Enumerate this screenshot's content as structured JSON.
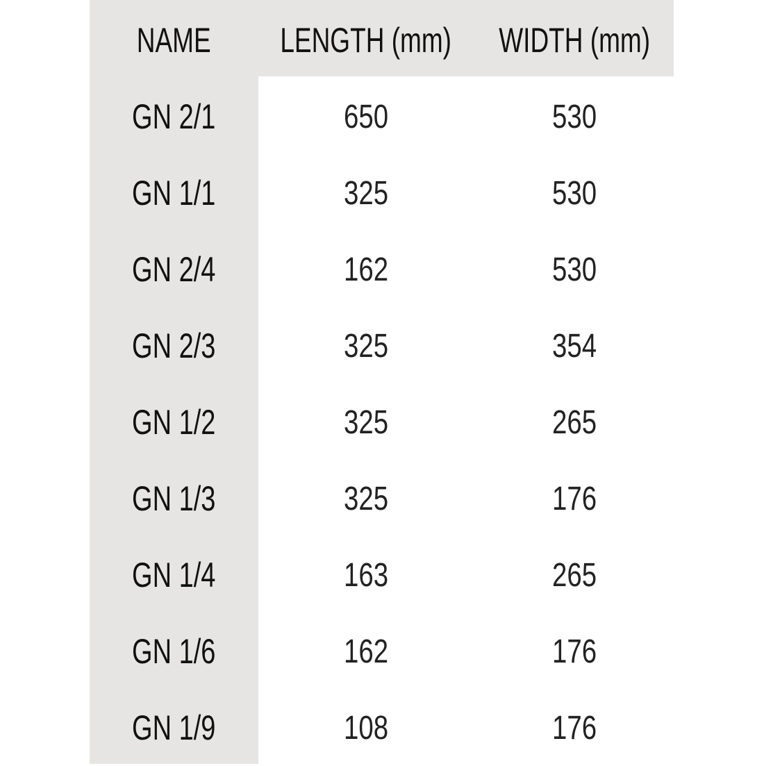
{
  "table": {
    "headers": [
      "NAME",
      "LENGTH (mm)",
      "WIDTH (mm)"
    ],
    "rows": [
      {
        "name": "GN 2/1",
        "length": "650",
        "width": "530"
      },
      {
        "name": "GN 1/1",
        "length": "325",
        "width": "530"
      },
      {
        "name": "GN 2/4",
        "length": "162",
        "width": "530"
      },
      {
        "name": "GN 2/3",
        "length": "325",
        "width": "354"
      },
      {
        "name": "GN 1/2",
        "length": "325",
        "width": "265"
      },
      {
        "name": "GN 1/3",
        "length": "325",
        "width": "176"
      },
      {
        "name": "GN 1/4",
        "length": "163",
        "width": "265"
      },
      {
        "name": "GN 1/6",
        "length": "162",
        "width": "176"
      },
      {
        "name": "GN 1/9",
        "length": "108",
        "width": "176"
      }
    ]
  },
  "colors": {
    "header_background": "#e6e5e4",
    "text": "#111111"
  }
}
